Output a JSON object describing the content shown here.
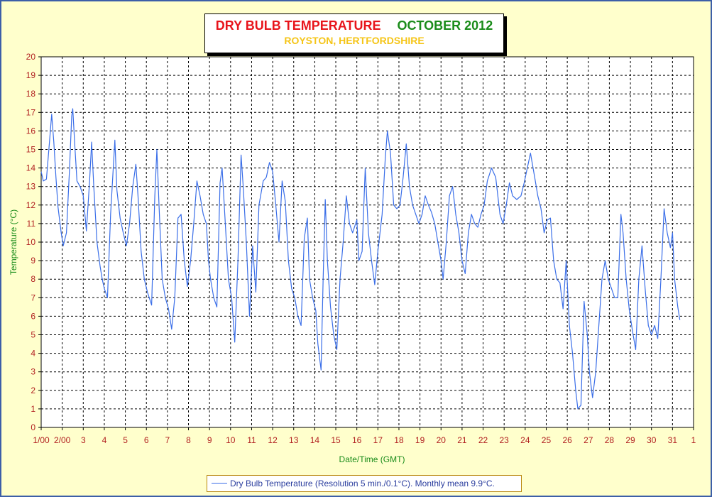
{
  "title": {
    "main": "DRY BULB TEMPERATURE",
    "month": "OCTOBER 2012",
    "location": "ROYSTON, HERTFORDSHIRE"
  },
  "legend": {
    "text": "Dry Bulb Temperature (Resolution 5 min./0.1°C). Monthly mean 9.9°C."
  },
  "colors": {
    "background": "#ffffcc",
    "frame": "#3c5fa8",
    "series": "#3a6ee8",
    "axis_labels": "#1a8c1a",
    "tick_labels": "#b22222",
    "title_red": "#e8141b",
    "title_green": "#1a8c1a",
    "subtitle": "#f5c518"
  },
  "chart_data": {
    "type": "line",
    "xlabel": "Date/Time (GMT)",
    "ylabel": "Temperature (°C)",
    "ylim": [
      0,
      20
    ],
    "xlim_days": [
      1,
      32
    ],
    "grid": true,
    "legend_position": "bottom-center",
    "x_tick_labels": [
      "1/00",
      "2/00",
      "3",
      "4",
      "5",
      "6",
      "7",
      "8",
      "9",
      "10",
      "11",
      "12",
      "13",
      "14",
      "15",
      "16",
      "17",
      "18",
      "19",
      "20",
      "21",
      "22",
      "23",
      "24",
      "25",
      "26",
      "27",
      "28",
      "29",
      "30",
      "31",
      "1"
    ],
    "y_tick_labels": [
      "0",
      "1",
      "2",
      "3",
      "4",
      "5",
      "6",
      "7",
      "8",
      "9",
      "10",
      "11",
      "12",
      "13",
      "14",
      "15",
      "16",
      "17",
      "18",
      "19",
      "20"
    ],
    "series": [
      {
        "name": "Dry Bulb Temperature (Resolution 5 min./0.1°C). Monthly mean 9.9°C.",
        "points": [
          [
            1.0,
            13.8
          ],
          [
            1.1,
            13.3
          ],
          [
            1.25,
            13.4
          ],
          [
            1.4,
            15.5
          ],
          [
            1.5,
            16.9
          ],
          [
            1.6,
            15.4
          ],
          [
            1.7,
            13.5
          ],
          [
            1.8,
            11.9
          ],
          [
            1.95,
            10.5
          ],
          [
            2.05,
            9.8
          ],
          [
            2.2,
            10.5
          ],
          [
            2.35,
            14.0
          ],
          [
            2.45,
            16.8
          ],
          [
            2.5,
            17.2
          ],
          [
            2.6,
            15.2
          ],
          [
            2.7,
            13.3
          ],
          [
            2.85,
            13.0
          ],
          [
            3.0,
            12.5
          ],
          [
            3.15,
            10.6
          ],
          [
            3.3,
            13.3
          ],
          [
            3.4,
            15.4
          ],
          [
            3.5,
            13.0
          ],
          [
            3.65,
            10.0
          ],
          [
            3.8,
            8.7
          ],
          [
            3.9,
            8.0
          ],
          [
            4.0,
            7.5
          ],
          [
            4.15,
            7.0
          ],
          [
            4.3,
            11.5
          ],
          [
            4.45,
            14.5
          ],
          [
            4.5,
            15.5
          ],
          [
            4.6,
            12.8
          ],
          [
            4.75,
            11.3
          ],
          [
            4.9,
            10.5
          ],
          [
            5.05,
            9.8
          ],
          [
            5.2,
            11.0
          ],
          [
            5.35,
            13.0
          ],
          [
            5.5,
            14.2
          ],
          [
            5.6,
            12.5
          ],
          [
            5.75,
            9.5
          ],
          [
            5.9,
            8.0
          ],
          [
            6.05,
            7.3
          ],
          [
            6.25,
            6.6
          ],
          [
            6.4,
            12.5
          ],
          [
            6.5,
            15.0
          ],
          [
            6.6,
            12.0
          ],
          [
            6.75,
            8.0
          ],
          [
            6.9,
            7.0
          ],
          [
            7.05,
            6.4
          ],
          [
            7.2,
            5.3
          ],
          [
            7.35,
            7.0
          ],
          [
            7.5,
            11.3
          ],
          [
            7.65,
            11.5
          ],
          [
            7.8,
            9.0
          ],
          [
            7.95,
            7.6
          ],
          [
            8.1,
            9.0
          ],
          [
            8.25,
            11.0
          ],
          [
            8.4,
            13.3
          ],
          [
            8.55,
            12.5
          ],
          [
            8.7,
            11.5
          ],
          [
            8.85,
            11.0
          ],
          [
            8.95,
            9.0
          ],
          [
            9.05,
            8.0
          ],
          [
            9.2,
            7.0
          ],
          [
            9.35,
            6.5
          ],
          [
            9.5,
            13.2
          ],
          [
            9.6,
            14.0
          ],
          [
            9.75,
            11.0
          ],
          [
            9.9,
            8.0
          ],
          [
            10.05,
            7.0
          ],
          [
            10.2,
            4.6
          ],
          [
            10.35,
            9.0
          ],
          [
            10.5,
            14.7
          ],
          [
            10.6,
            13.0
          ],
          [
            10.75,
            10.0
          ],
          [
            10.9,
            6.0
          ],
          [
            11.05,
            9.8
          ],
          [
            11.2,
            7.3
          ],
          [
            11.35,
            12.0
          ],
          [
            11.55,
            13.3
          ],
          [
            11.7,
            13.5
          ],
          [
            11.85,
            14.3
          ],
          [
            12.0,
            13.8
          ],
          [
            12.15,
            12.0
          ],
          [
            12.3,
            10.0
          ],
          [
            12.45,
            13.3
          ],
          [
            12.6,
            12.2
          ],
          [
            12.75,
            9.0
          ],
          [
            12.9,
            7.5
          ],
          [
            13.05,
            7.0
          ],
          [
            13.2,
            6.0
          ],
          [
            13.35,
            5.5
          ],
          [
            13.5,
            10.2
          ],
          [
            13.65,
            11.3
          ],
          [
            13.75,
            8.0
          ],
          [
            13.9,
            7.0
          ],
          [
            14.05,
            6.3
          ],
          [
            14.15,
            4.5
          ],
          [
            14.3,
            3.1
          ],
          [
            14.4,
            8.0
          ],
          [
            14.5,
            12.3
          ],
          [
            14.6,
            9.0
          ],
          [
            14.75,
            6.5
          ],
          [
            14.9,
            5.0
          ],
          [
            15.05,
            4.2
          ],
          [
            15.2,
            8.0
          ],
          [
            15.35,
            10.0
          ],
          [
            15.5,
            12.5
          ],
          [
            15.65,
            11.0
          ],
          [
            15.8,
            10.5
          ],
          [
            16.0,
            11.2
          ],
          [
            16.1,
            9.0
          ],
          [
            16.25,
            9.5
          ],
          [
            16.4,
            14.0
          ],
          [
            16.55,
            10.5
          ],
          [
            16.7,
            9.0
          ],
          [
            16.85,
            7.7
          ],
          [
            17.0,
            9.5
          ],
          [
            17.2,
            11.5
          ],
          [
            17.35,
            14.5
          ],
          [
            17.45,
            16.0
          ],
          [
            17.6,
            14.8
          ],
          [
            17.75,
            12.0
          ],
          [
            17.9,
            11.8
          ],
          [
            18.05,
            12.0
          ],
          [
            18.2,
            13.5
          ],
          [
            18.35,
            15.3
          ],
          [
            18.5,
            13.0
          ],
          [
            18.65,
            12.0
          ],
          [
            18.8,
            11.5
          ],
          [
            18.95,
            11.0
          ],
          [
            19.1,
            11.5
          ],
          [
            19.25,
            12.5
          ],
          [
            19.4,
            12.0
          ],
          [
            19.55,
            11.6
          ],
          [
            19.7,
            11.0
          ],
          [
            19.85,
            10.0
          ],
          [
            20.0,
            9.0
          ],
          [
            20.1,
            8.0
          ],
          [
            20.25,
            10.0
          ],
          [
            20.4,
            12.5
          ],
          [
            20.55,
            13.0
          ],
          [
            20.7,
            11.5
          ],
          [
            20.85,
            10.5
          ],
          [
            21.0,
            9.0
          ],
          [
            21.15,
            8.3
          ],
          [
            21.3,
            10.5
          ],
          [
            21.45,
            11.5
          ],
          [
            21.6,
            11.0
          ],
          [
            21.75,
            10.8
          ],
          [
            21.9,
            11.5
          ],
          [
            22.05,
            12.0
          ],
          [
            22.2,
            13.3
          ],
          [
            22.4,
            14.0
          ],
          [
            22.6,
            13.5
          ],
          [
            22.8,
            11.5
          ],
          [
            22.95,
            11.0
          ],
          [
            23.1,
            12.0
          ],
          [
            23.25,
            13.2
          ],
          [
            23.4,
            12.5
          ],
          [
            23.6,
            12.3
          ],
          [
            23.8,
            12.5
          ],
          [
            23.95,
            13.2
          ],
          [
            24.1,
            14.0
          ],
          [
            24.25,
            14.8
          ],
          [
            24.45,
            13.5
          ],
          [
            24.6,
            12.5
          ],
          [
            24.75,
            11.8
          ],
          [
            24.9,
            10.5
          ],
          [
            25.05,
            11.2
          ],
          [
            25.2,
            11.3
          ],
          [
            25.35,
            9.0
          ],
          [
            25.5,
            8.0
          ],
          [
            25.65,
            7.8
          ],
          [
            25.8,
            6.4
          ],
          [
            25.95,
            9.0
          ],
          [
            26.1,
            5.5
          ],
          [
            26.25,
            4.0
          ],
          [
            26.4,
            2.0
          ],
          [
            26.5,
            1.0
          ],
          [
            26.65,
            1.2
          ],
          [
            26.8,
            6.8
          ],
          [
            26.95,
            5.0
          ],
          [
            27.05,
            3.0
          ],
          [
            27.2,
            1.6
          ],
          [
            27.35,
            3.0
          ],
          [
            27.5,
            5.5
          ],
          [
            27.65,
            8.0
          ],
          [
            27.8,
            9.0
          ],
          [
            27.95,
            8.0
          ],
          [
            28.1,
            7.5
          ],
          [
            28.25,
            7.0
          ],
          [
            28.4,
            7.0
          ],
          [
            28.55,
            11.5
          ],
          [
            28.65,
            10.5
          ],
          [
            28.8,
            8.0
          ],
          [
            28.95,
            6.3
          ],
          [
            29.1,
            5.2
          ],
          [
            29.25,
            4.2
          ],
          [
            29.4,
            8.0
          ],
          [
            29.55,
            9.8
          ],
          [
            29.7,
            7.5
          ],
          [
            29.85,
            5.5
          ],
          [
            30.0,
            5.0
          ],
          [
            30.15,
            5.5
          ],
          [
            30.3,
            4.8
          ],
          [
            30.45,
            8.0
          ],
          [
            30.6,
            11.8
          ],
          [
            30.75,
            10.5
          ],
          [
            30.9,
            9.7
          ],
          [
            31.0,
            10.5
          ],
          [
            31.1,
            8.0
          ],
          [
            31.25,
            6.5
          ],
          [
            31.35,
            5.8
          ]
        ]
      }
    ]
  }
}
